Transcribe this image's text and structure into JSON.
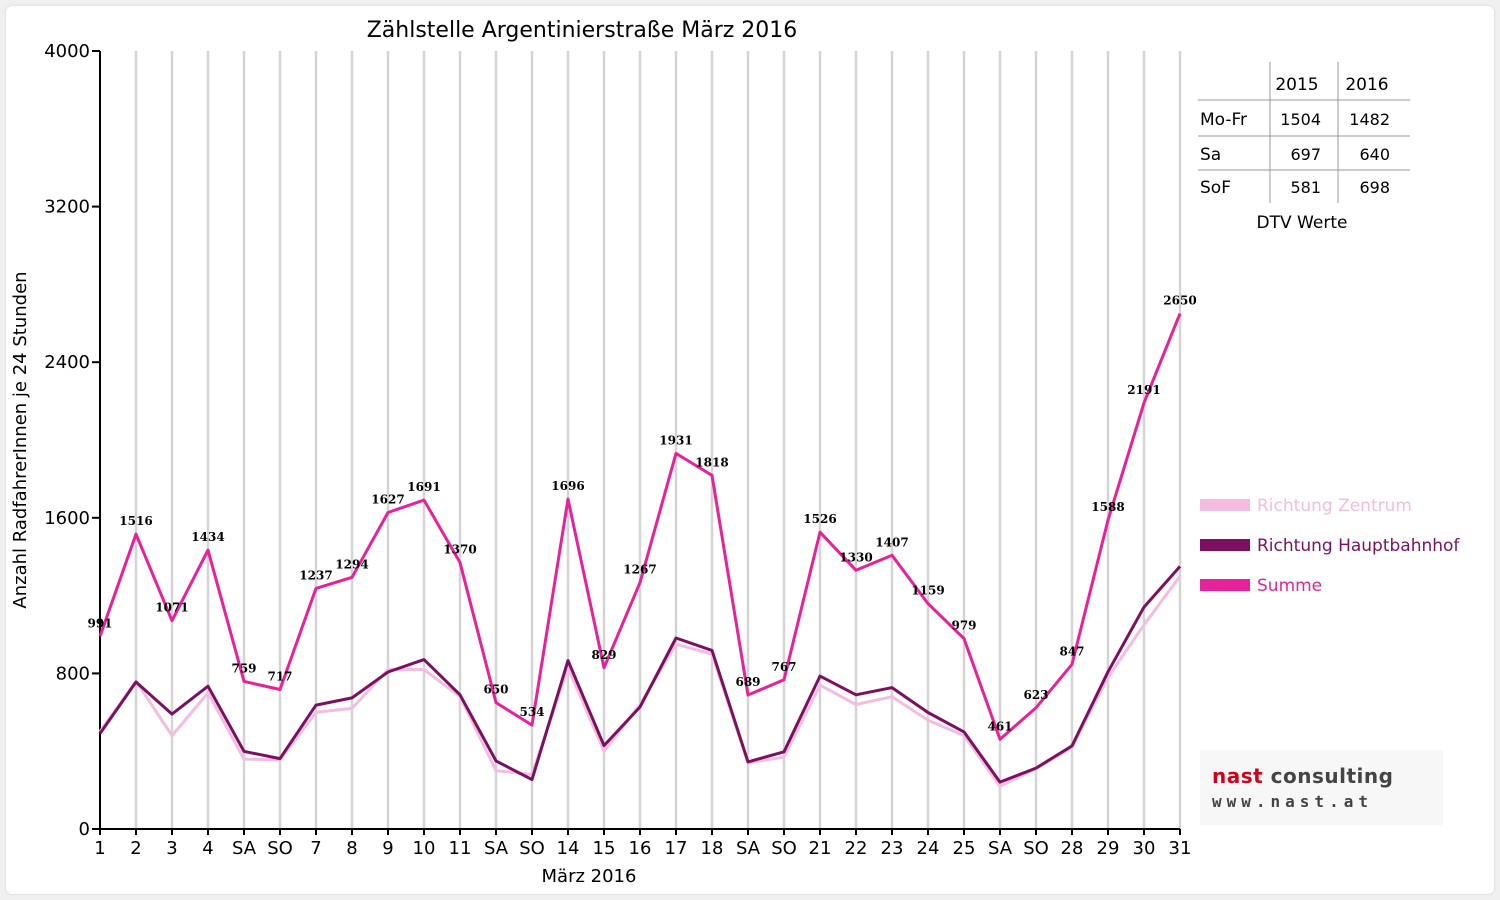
{
  "chart_data": {
    "type": "line",
    "title": "Zählstelle Argentinierstraße März 2016",
    "xlabel": "März 2016",
    "ylabel": "Anzahl RadfahrerInnen je 24 Stunden",
    "ylim": [
      0,
      4000
    ],
    "yticks": [
      "0",
      "800",
      "1600",
      "2400",
      "3200",
      "4000"
    ],
    "grid": "vertical",
    "legend_position": "right",
    "categories": [
      "1",
      "2",
      "3",
      "4",
      "SA",
      "SO",
      "7",
      "8",
      "9",
      "10",
      "11",
      "SA",
      "SO",
      "14",
      "15",
      "16",
      "17",
      "18",
      "SA",
      "SO",
      "21",
      "22",
      "23",
      "24",
      "25",
      "SA",
      "SO",
      "28",
      "29",
      "30",
      "31"
    ],
    "red_categories": [
      5,
      12,
      19,
      26,
      27
    ],
    "series": [
      {
        "name": "Richtung Zentrum",
        "color": "#f2bde0",
        "values": [
          500,
          760,
          480,
          700,
          360,
          355,
          600,
          620,
          820,
          820,
          680,
          300,
          280,
          830,
          400,
          640,
          950,
          900,
          340,
          370,
          740,
          640,
          680,
          560,
          480,
          220,
          310,
          420,
          780,
          1050,
          1300
        ]
      },
      {
        "name": "Richtung Hauptbahnhof",
        "color": "#7c1060",
        "values": [
          491,
          756,
          591,
          734,
          399,
          362,
          637,
          674,
          807,
          871,
          690,
          350,
          254,
          866,
          429,
          627,
          982,
          918,
          345,
          397,
          786,
          690,
          727,
          599,
          499,
          241,
          313,
          427,
          808,
          1141,
          1350
        ]
      },
      {
        "name": "Summe",
        "color": "#e8219a",
        "values": [
          991,
          1516,
          1071,
          1434,
          759,
          717,
          1237,
          1294,
          1627,
          1691,
          1370,
          650,
          534,
          1696,
          829,
          1267,
          1931,
          1818,
          689,
          767,
          1526,
          1330,
          1407,
          1159,
          979,
          461,
          623,
          847,
          1588,
          2191,
          2650
        ]
      }
    ],
    "data_labels": [
      "991",
      "1516",
      "1071",
      "1434",
      "759",
      "717",
      "1237",
      "1294",
      "1627",
      "1691",
      "1370",
      "650",
      "534",
      "1696",
      "829",
      "1267",
      "1931",
      "1818",
      "689",
      "767",
      "1526",
      "1330",
      "1407",
      "1159",
      "979",
      "461",
      "623",
      "847",
      "1588",
      "2191",
      "2650"
    ]
  },
  "dtv_table": {
    "headers": [
      "",
      "2015",
      "2016"
    ],
    "rows": [
      [
        "Mo-Fr",
        "1504",
        "1482"
      ],
      [
        "Sa",
        "697",
        "640"
      ],
      [
        "SoF",
        "581",
        "698"
      ]
    ],
    "caption": "DTV Werte"
  },
  "logo": {
    "name_part1": "nast",
    "name_part2": " consulting",
    "url": "www.nast.at"
  }
}
